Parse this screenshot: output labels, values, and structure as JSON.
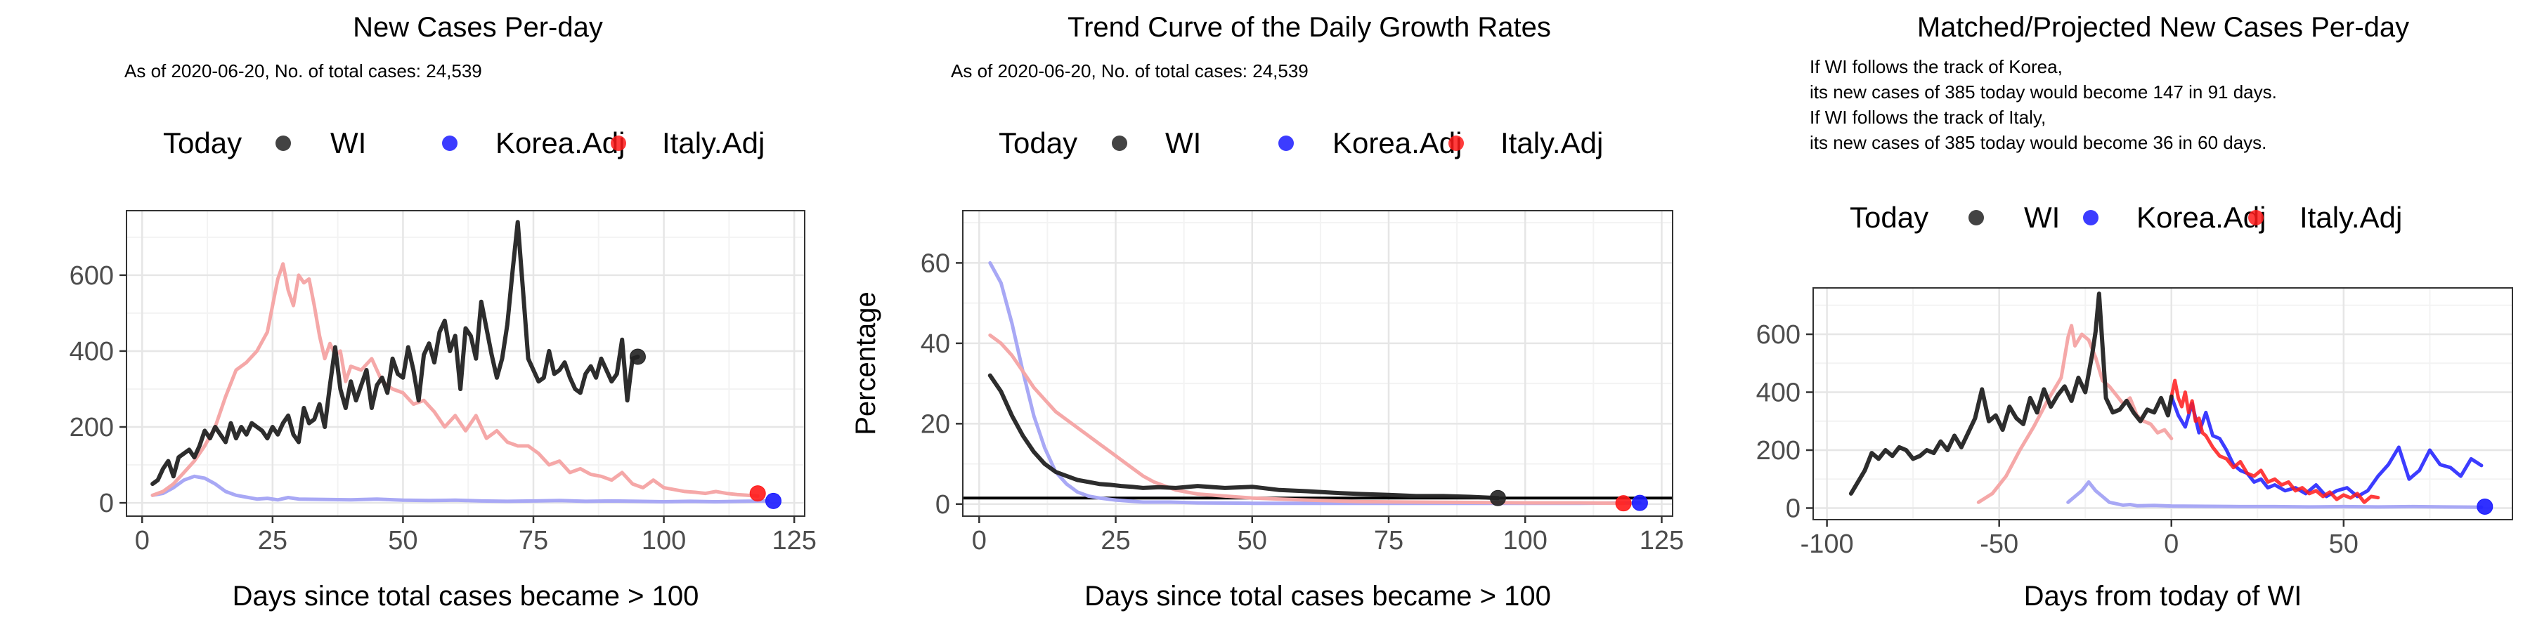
{
  "colors": {
    "wi": "#222222",
    "korea": "#1a1aff",
    "italy": "#ff1a1a",
    "korea_faded": "#a8a8f5",
    "italy_faded": "#f5a8a8",
    "grid_major": "#e6e6e6",
    "grid_minor": "#f3f3f3",
    "panel_border": "#333333"
  },
  "legend_items": [
    "Today",
    "WI",
    "Korea.Adj",
    "Italy.Adj"
  ],
  "chart_data": [
    {
      "type": "line",
      "title": "New Cases Per-day",
      "subtitle": "As of 2020-06-20, No. of total cases: 24,539",
      "xlabel": "Days since total cases became > 100",
      "ylabel": "",
      "xlim": [
        -3,
        127
      ],
      "ylim": [
        -35,
        770
      ],
      "xticks": [
        0,
        25,
        50,
        75,
        100,
        125
      ],
      "yticks": [
        0,
        200,
        400,
        600
      ],
      "legend": "top",
      "grid": true,
      "series": [
        {
          "name": "WI",
          "x": [
            2,
            3,
            4,
            5,
            6,
            7,
            8,
            9,
            10,
            11,
            12,
            13,
            14,
            15,
            16,
            17,
            18,
            19,
            20,
            21,
            22,
            23,
            24,
            25,
            26,
            27,
            28,
            29,
            30,
            31,
            32,
            33,
            34,
            35,
            36,
            37,
            38,
            39,
            40,
            41,
            42,
            43,
            44,
            45,
            46,
            47,
            48,
            49,
            50,
            51,
            52,
            53,
            54,
            55,
            56,
            57,
            58,
            59,
            60,
            61,
            62,
            63,
            64,
            65,
            66,
            67,
            68,
            69,
            70,
            71,
            72,
            73,
            74,
            75,
            76,
            77,
            78,
            79,
            80,
            81,
            82,
            83,
            84,
            85,
            86,
            87,
            88,
            89,
            90,
            91,
            92,
            93,
            94,
            95
          ],
          "y": [
            50,
            60,
            90,
            110,
            70,
            120,
            130,
            140,
            120,
            150,
            190,
            170,
            200,
            180,
            160,
            210,
            170,
            200,
            180,
            210,
            200,
            190,
            170,
            200,
            180,
            210,
            230,
            180,
            160,
            250,
            210,
            220,
            260,
            200,
            310,
            410,
            300,
            250,
            320,
            270,
            310,
            350,
            250,
            310,
            330,
            290,
            380,
            340,
            330,
            410,
            350,
            270,
            390,
            420,
            370,
            450,
            480,
            400,
            440,
            300,
            460,
            440,
            380,
            530,
            460,
            390,
            330,
            380,
            470,
            610,
            740,
            560,
            380,
            350,
            320,
            330,
            400,
            340,
            350,
            370,
            330,
            300,
            290,
            340,
            360,
            330,
            380,
            350,
            320,
            340,
            430,
            270,
            380,
            385
          ],
          "style": "solid-dark"
        },
        {
          "name": "Korea.Adj",
          "x": [
            2,
            4,
            6,
            8,
            10,
            12,
            14,
            16,
            18,
            20,
            22,
            24,
            26,
            28,
            30,
            35,
            40,
            45,
            50,
            55,
            60,
            65,
            70,
            75,
            80,
            85,
            90,
            95,
            100,
            105,
            110,
            115,
            120
          ],
          "y": [
            20,
            25,
            40,
            60,
            70,
            65,
            50,
            30,
            20,
            15,
            10,
            12,
            8,
            14,
            10,
            9,
            8,
            10,
            7,
            6,
            7,
            5,
            4,
            5,
            6,
            4,
            5,
            4,
            3,
            4,
            3,
            4,
            5
          ],
          "style": "faded-blue"
        },
        {
          "name": "Italy.Adj",
          "x": [
            2,
            4,
            6,
            8,
            10,
            12,
            14,
            16,
            18,
            20,
            22,
            24,
            26,
            27,
            28,
            29,
            30,
            31,
            32,
            33,
            34,
            35,
            36,
            37,
            38,
            39,
            40,
            42,
            44,
            46,
            48,
            50,
            52,
            54,
            56,
            58,
            60,
            62,
            64,
            66,
            68,
            70,
            72,
            74,
            76,
            78,
            80,
            82,
            84,
            86,
            88,
            90,
            92,
            94,
            96,
            98,
            100,
            102,
            104,
            106,
            108,
            110,
            112,
            114,
            116,
            118
          ],
          "y": [
            20,
            30,
            50,
            80,
            110,
            150,
            200,
            280,
            350,
            370,
            400,
            450,
            590,
            630,
            560,
            520,
            600,
            580,
            590,
            520,
            440,
            380,
            420,
            390,
            400,
            320,
            360,
            350,
            380,
            320,
            300,
            290,
            260,
            270,
            240,
            200,
            230,
            190,
            230,
            170,
            190,
            160,
            150,
            150,
            130,
            100,
            110,
            80,
            90,
            75,
            70,
            60,
            80,
            50,
            40,
            60,
            40,
            35,
            30,
            28,
            25,
            30,
            25,
            22,
            20,
            18
          ],
          "style": "faded-red"
        }
      ],
      "today_points": [
        {
          "series": "WI",
          "x": 95,
          "y": 385
        },
        {
          "series": "Italy.Adj",
          "x": 118,
          "y": 25
        },
        {
          "series": "Korea.Adj",
          "x": 121,
          "y": 5
        }
      ]
    },
    {
      "type": "line",
      "title": "Trend Curve of the Daily Growth Rates",
      "subtitle": "As of 2020-06-20, No. of total cases: 24,539",
      "xlabel": "Days since total cases became > 100",
      "ylabel": "Percentage",
      "xlim": [
        -3,
        127
      ],
      "ylim": [
        -3,
        73
      ],
      "xticks": [
        0,
        25,
        50,
        75,
        100,
        125
      ],
      "yticks": [
        0,
        20,
        40,
        60
      ],
      "hline": 1.5,
      "legend": "top",
      "grid": true,
      "series": [
        {
          "name": "WI",
          "x": [
            2,
            4,
            6,
            8,
            10,
            12,
            14,
            16,
            18,
            20,
            22,
            24,
            26,
            28,
            30,
            33,
            36,
            40,
            45,
            50,
            55,
            60,
            65,
            70,
            75,
            80,
            85,
            90,
            95
          ],
          "y": [
            32,
            28,
            22,
            17,
            13,
            10,
            8,
            7,
            6,
            5.5,
            5,
            4.8,
            4.5,
            4.3,
            4,
            4.2,
            4,
            4.5,
            4,
            4.3,
            3.5,
            3.2,
            2.8,
            2.5,
            2.3,
            2,
            2,
            1.8,
            1.5
          ],
          "style": "solid-dark"
        },
        {
          "name": "Korea.Adj",
          "x": [
            2,
            4,
            6,
            8,
            10,
            12,
            14,
            16,
            18,
            20,
            22,
            25,
            30,
            35,
            40,
            50,
            60,
            70,
            80,
            90,
            100,
            110,
            121
          ],
          "y": [
            60,
            55,
            45,
            33,
            22,
            14,
            8,
            5,
            3,
            2,
            1.5,
            1,
            0.5,
            0.5,
            0.3,
            0.2,
            0.2,
            0.2,
            0.2,
            0.2,
            0.2,
            0.2,
            0.3
          ],
          "style": "faded-blue"
        },
        {
          "name": "Italy.Adj",
          "x": [
            2,
            4,
            6,
            8,
            10,
            12,
            14,
            16,
            18,
            20,
            22,
            24,
            26,
            28,
            30,
            32,
            34,
            36,
            38,
            40,
            45,
            50,
            60,
            70,
            80,
            90,
            100,
            110,
            118
          ],
          "y": [
            42,
            40,
            37,
            33,
            29,
            26,
            23,
            21,
            19,
            17,
            15,
            13,
            11,
            9,
            7,
            5.5,
            4.5,
            3.5,
            3,
            2.5,
            2,
            1.5,
            1,
            0.6,
            0.5,
            0.4,
            0.3,
            0.3,
            0.2
          ],
          "style": "faded-red"
        }
      ],
      "today_points": [
        {
          "series": "WI",
          "x": 95,
          "y": 1.5
        },
        {
          "series": "Italy.Adj",
          "x": 118,
          "y": 0.2
        },
        {
          "series": "Korea.Adj",
          "x": 121,
          "y": 0.3
        }
      ]
    },
    {
      "type": "line",
      "title": "Matched/Projected New Cases Per-day",
      "notes": [
        "If WI follows the track of Korea,",
        "its new cases of 385 today would become 147 in 91 days.",
        "If WI follows the track of Italy,",
        "its new cases of 385 today would become 36 in 60 days."
      ],
      "xlabel": "Days from today of WI",
      "ylabel": "",
      "xlim": [
        -104,
        99
      ],
      "ylim": [
        -40,
        760
      ],
      "xticks": [
        -100,
        -50,
        0,
        50,
        100
      ],
      "yticks": [
        0,
        200,
        400,
        600
      ],
      "legend": "top",
      "grid": true,
      "series": [
        {
          "name": "WI",
          "x": [
            -93,
            -91,
            -89,
            -87,
            -85,
            -83,
            -81,
            -79,
            -77,
            -75,
            -73,
            -71,
            -69,
            -67,
            -65,
            -63,
            -61,
            -59,
            -57,
            -55,
            -53,
            -51,
            -49,
            -47,
            -45,
            -43,
            -41,
            -39,
            -37,
            -35,
            -33,
            -31,
            -29,
            -27,
            -25,
            -23,
            -22,
            -21,
            -20,
            -19,
            -17,
            -15,
            -13,
            -11,
            -9,
            -7,
            -5,
            -3,
            -1,
            0
          ],
          "y": [
            50,
            90,
            130,
            190,
            170,
            200,
            180,
            210,
            200,
            170,
            180,
            200,
            190,
            230,
            200,
            250,
            210,
            260,
            310,
            410,
            300,
            320,
            270,
            350,
            310,
            290,
            380,
            330,
            410,
            350,
            390,
            420,
            370,
            450,
            400,
            530,
            610,
            740,
            560,
            380,
            330,
            340,
            370,
            330,
            300,
            340,
            330,
            380,
            320,
            385
          ],
          "style": "solid-dark"
        },
        {
          "name": "Korea.Adj",
          "x": [
            -30,
            -28,
            -26,
            -24,
            -22,
            -20,
            -18,
            -16,
            -14,
            -12,
            -10,
            -5,
            0,
            10,
            20,
            30,
            40,
            50,
            60,
            70,
            80,
            90
          ],
          "y": [
            20,
            40,
            60,
            90,
            60,
            40,
            20,
            15,
            10,
            12,
            8,
            9,
            7,
            6,
            5,
            5,
            4,
            5,
            4,
            5,
            4,
            3
          ],
          "style": "faded-blue"
        },
        {
          "name": "Italy.Adj",
          "x": [
            -56,
            -52,
            -48,
            -44,
            -40,
            -36,
            -32,
            -30,
            -29,
            -28,
            -26,
            -24,
            -22,
            -20,
            -18,
            -16,
            -14,
            -12,
            -10,
            -8,
            -6,
            -4,
            -2,
            0
          ],
          "y": [
            20,
            50,
            110,
            200,
            280,
            370,
            450,
            590,
            630,
            560,
            600,
            580,
            520,
            440,
            420,
            390,
            360,
            380,
            320,
            300,
            290,
            260,
            270,
            240
          ],
          "style": "faded-red"
        },
        {
          "name": "Korea.Adj projected",
          "x": [
            0,
            2,
            4,
            6,
            8,
            10,
            12,
            14,
            16,
            18,
            20,
            22,
            24,
            26,
            28,
            30,
            33,
            36,
            39,
            42,
            45,
            48,
            51,
            54,
            57,
            60,
            63,
            66,
            69,
            72,
            75,
            78,
            81,
            84,
            87,
            90
          ],
          "y": [
            385,
            320,
            280,
            360,
            260,
            330,
            250,
            240,
            200,
            150,
            130,
            120,
            90,
            100,
            70,
            80,
            60,
            70,
            50,
            80,
            40,
            60,
            70,
            40,
            60,
            110,
            150,
            210,
            100,
            130,
            200,
            150,
            140,
            110,
            170,
            147
          ],
          "style": "proj-blue"
        },
        {
          "name": "Italy.Adj projected",
          "x": [
            0,
            1,
            2,
            3,
            4,
            5,
            6,
            7,
            8,
            9,
            10,
            12,
            14,
            16,
            18,
            20,
            22,
            24,
            26,
            28,
            30,
            32,
            34,
            36,
            38,
            40,
            42,
            44,
            46,
            48,
            50,
            52,
            54,
            56,
            58,
            60
          ],
          "y": [
            385,
            440,
            380,
            350,
            400,
            330,
            370,
            300,
            310,
            260,
            250,
            210,
            180,
            170,
            140,
            160,
            120,
            110,
            130,
            90,
            100,
            80,
            90,
            60,
            70,
            50,
            60,
            40,
            55,
            30,
            45,
            35,
            50,
            20,
            40,
            36
          ],
          "style": "proj-red"
        }
      ],
      "today_points": [
        {
          "series": "Korea.Adj",
          "x": 91,
          "y": 5
        }
      ]
    }
  ]
}
